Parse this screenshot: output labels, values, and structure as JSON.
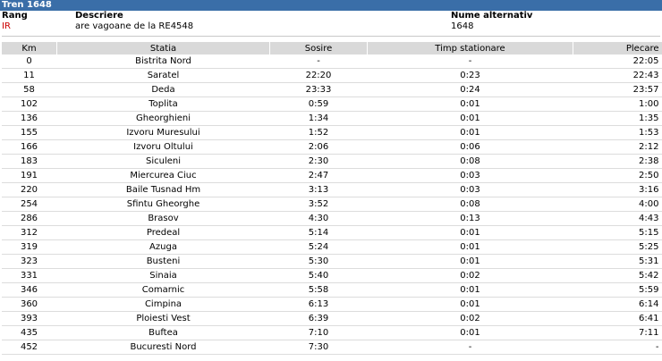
{
  "title": "Tren  1648",
  "header": {
    "rang_label": "Rang",
    "rang_value": "IR",
    "descriere_label": "Descriere",
    "descriere_value": "are vagoane de la RE4548",
    "alt_label": "Nume alternativ",
    "alt_value": "1648"
  },
  "columns": [
    "Km",
    "Statia",
    "Sosire",
    "Timp stationare",
    "Plecare"
  ],
  "rows": [
    [
      "0",
      "Bistrita Nord",
      "-",
      "-",
      "22:05"
    ],
    [
      "11",
      "Saratel",
      "22:20",
      "0:23",
      "22:43"
    ],
    [
      "58",
      "Deda",
      "23:33",
      "0:24",
      "23:57"
    ],
    [
      "102",
      "Toplita",
      "0:59",
      "0:01",
      "1:00"
    ],
    [
      "136",
      "Gheorghieni",
      "1:34",
      "0:01",
      "1:35"
    ],
    [
      "155",
      "Izvoru Muresului",
      "1:52",
      "0:01",
      "1:53"
    ],
    [
      "166",
      "Izvoru Oltului",
      "2:06",
      "0:06",
      "2:12"
    ],
    [
      "183",
      "Siculeni",
      "2:30",
      "0:08",
      "2:38"
    ],
    [
      "191",
      "Miercurea Ciuc",
      "2:47",
      "0:03",
      "2:50"
    ],
    [
      "220",
      "Baile Tusnad Hm",
      "3:13",
      "0:03",
      "3:16"
    ],
    [
      "254",
      "Sfintu Gheorghe",
      "3:52",
      "0:08",
      "4:00"
    ],
    [
      "286",
      "Brasov",
      "4:30",
      "0:13",
      "4:43"
    ],
    [
      "312",
      "Predeal",
      "5:14",
      "0:01",
      "5:15"
    ],
    [
      "319",
      "Azuga",
      "5:24",
      "0:01",
      "5:25"
    ],
    [
      "323",
      "Busteni",
      "5:30",
      "0:01",
      "5:31"
    ],
    [
      "331",
      "Sinaia",
      "5:40",
      "0:02",
      "5:42"
    ],
    [
      "346",
      "Comarnic",
      "5:58",
      "0:01",
      "5:59"
    ],
    [
      "360",
      "Cimpina",
      "6:13",
      "0:01",
      "6:14"
    ],
    [
      "393",
      "Ploiesti Vest",
      "6:39",
      "0:02",
      "6:41"
    ],
    [
      "435",
      "Buftea",
      "7:10",
      "0:01",
      "7:11"
    ],
    [
      "452",
      "Bucuresti Nord",
      "7:30",
      "-",
      "-"
    ]
  ]
}
